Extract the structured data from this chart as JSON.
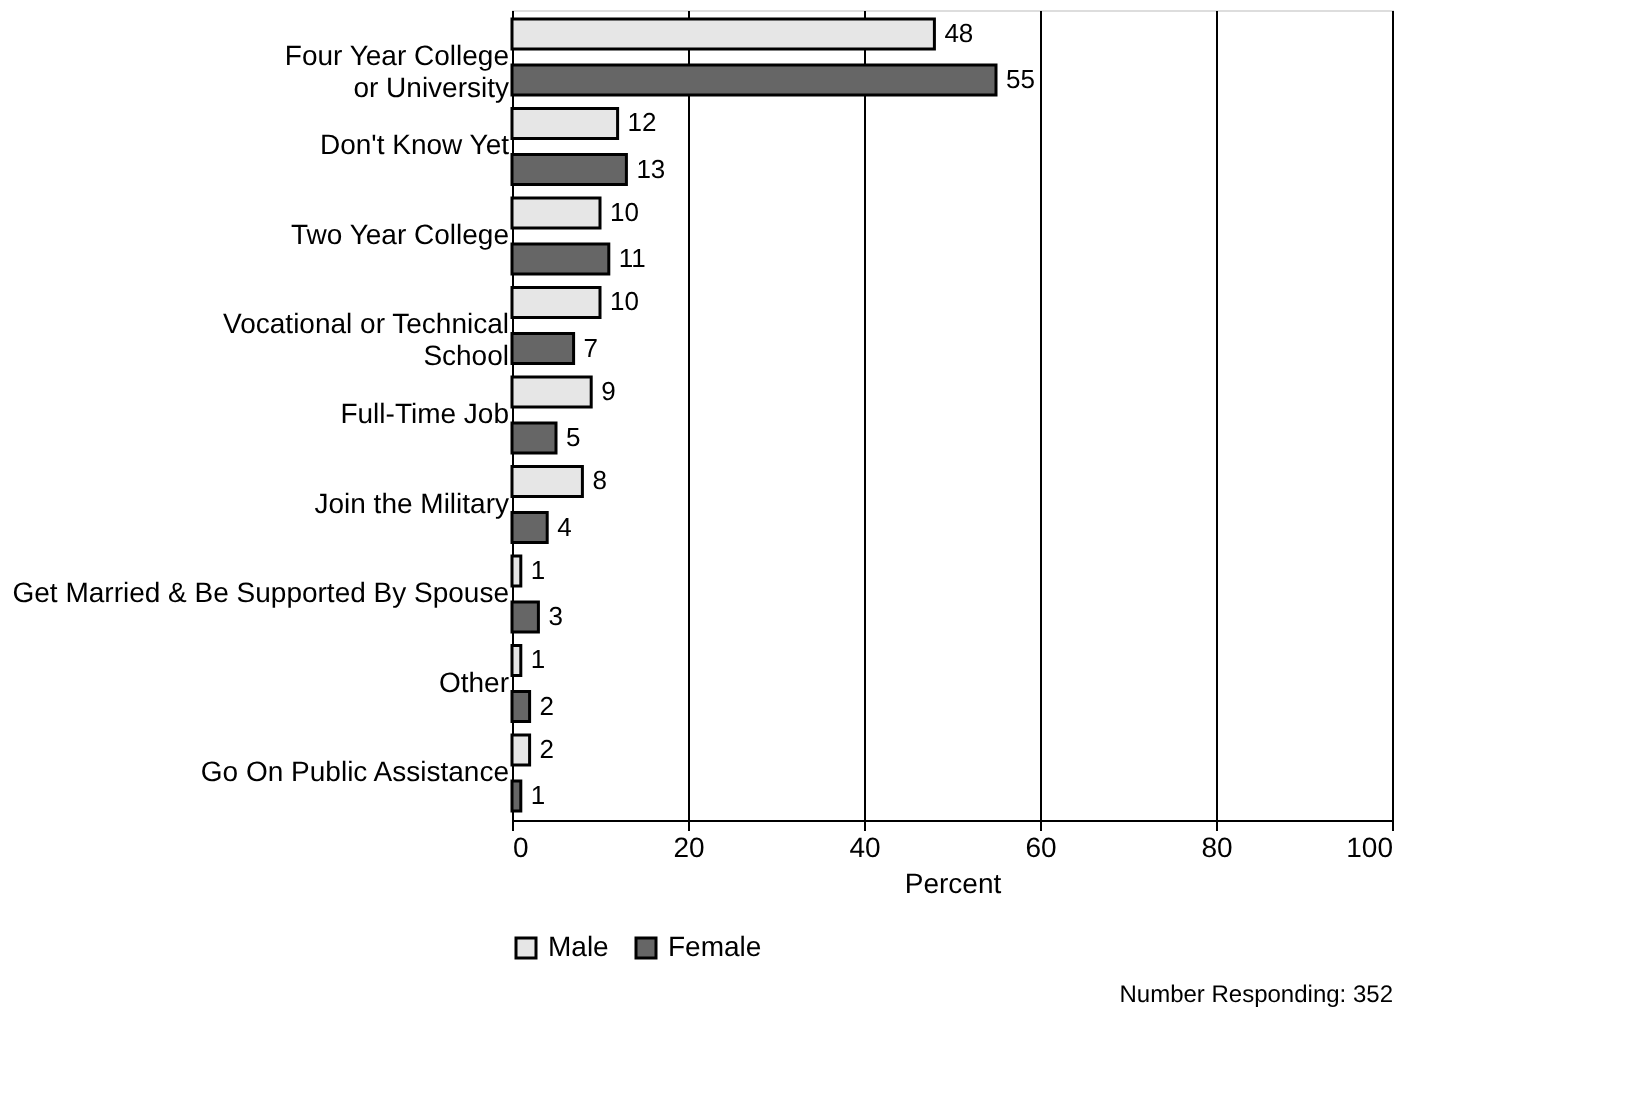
{
  "chart_data": {
    "type": "bar",
    "orientation": "horizontal",
    "xlabel": "Percent",
    "categories": [
      "Four Year College\nor University",
      "Don't Know Yet",
      "Two Year College",
      "Vocational or Technical\nSchool",
      "Full-Time Job",
      "Join the Military",
      "Get Married & Be Supported By Spouse",
      "Other",
      "Go On Public Assistance"
    ],
    "series": [
      {
        "name": "Male",
        "color": "#e6e6e6",
        "values": [
          48,
          12,
          10,
          10,
          9,
          8,
          1,
          1,
          2
        ]
      },
      {
        "name": "Female",
        "color": "#666666",
        "values": [
          55,
          13,
          11,
          7,
          5,
          4,
          3,
          2,
          1
        ]
      }
    ],
    "xlim": [
      0,
      100
    ],
    "xticks": [
      0,
      20,
      40,
      60,
      80,
      100
    ],
    "grid": "x",
    "data_labels": true,
    "legend": "bottom",
    "annotations": [
      "Number Responding:  352"
    ]
  }
}
